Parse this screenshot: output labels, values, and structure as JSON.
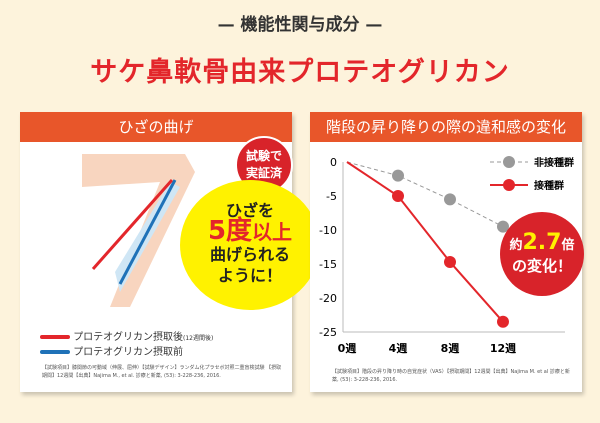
{
  "header": {
    "subtitle": "— 機能性関与成分 —",
    "title": "サケ鼻軟骨由来プロテオグリカン"
  },
  "left": {
    "title": "ひざの曲げ",
    "badge": [
      "試験で",
      "実証済"
    ],
    "callout": [
      "ひざを",
      "5度",
      "以上",
      "曲げられる",
      "ように！"
    ],
    "legend": [
      {
        "label": "プロテオグリカン摂取後",
        "sub": "(12週間後)",
        "color": "#e3262b"
      },
      {
        "label": "プロテオグリカン摂取前",
        "color": "#1f72b8"
      }
    ],
    "note": "【試験項目】膝関節の可動域（伸展、屈伸）【試験デザイン】ランダム化プラセボ対照二重盲検試験 【摂取期間】12週間【出典】Najima M., et al. 診療と新薬, (53): 3-228-236, 2016."
  },
  "right": {
    "title": "階段の昇り降りの際の違和感の変化",
    "callout": [
      "約",
      "2.7",
      "倍",
      "の変化！"
    ],
    "note": "【試験項目】階段の昇り降り時の自覚症状（VAS）【摂取期間】12週間【出典】Najima M. et al 診療と新薬, (53): 3-228-236, 2016."
  },
  "chart_data": {
    "type": "line",
    "categories": [
      "0週",
      "4週",
      "8週",
      "12週"
    ],
    "ylim": [
      -25,
      0
    ],
    "yticks": [
      "0",
      "-5",
      "-10",
      "-15",
      "-20",
      "-25"
    ],
    "legend_position": "top-right",
    "grid": false,
    "series": [
      {
        "name": "非接種群",
        "values": [
          0,
          -2,
          -5.5,
          -9.5
        ],
        "color": "#999999",
        "style": "dashed"
      },
      {
        "name": "接種群",
        "values": [
          0,
          -5,
          -14.7,
          -23.5
        ],
        "color": "#e3262b",
        "style": "solid"
      }
    ]
  }
}
